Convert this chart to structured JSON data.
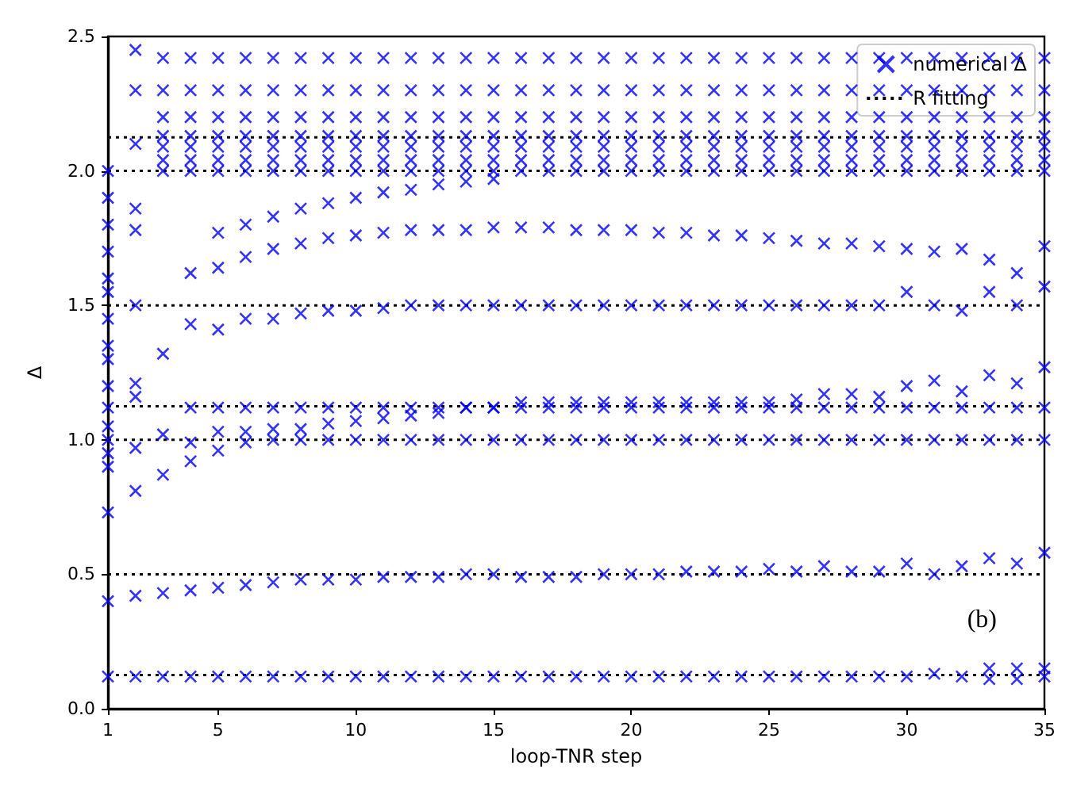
{
  "chart_data": {
    "type": "scatter",
    "xlabel": "loop-TNR step",
    "ylabel": "Δ",
    "xlim": [
      1,
      35
    ],
    "ylim": [
      0,
      2.5
    ],
    "xticks": [
      1,
      5,
      10,
      15,
      20,
      25,
      30,
      35
    ],
    "yticks": [
      {
        "value": 0,
        "label": "0.0"
      },
      {
        "value": 0.5,
        "label": "0.5"
      },
      {
        "value": 1,
        "label": "1.0"
      },
      {
        "value": 1.5,
        "label": "1.5"
      },
      {
        "value": 2,
        "label": "2.0"
      },
      {
        "value": 2.5,
        "label": "2.5"
      }
    ],
    "grid": false,
    "legend": "top right",
    "annotations": [
      "(b)"
    ],
    "series": [
      {
        "name": "numerical Δ",
        "type": "scatter",
        "marker": "cross",
        "color": "#0000ff",
        "x": [
          1,
          2,
          3,
          4,
          5,
          6,
          7,
          8,
          9,
          10,
          11,
          12,
          13,
          14,
          15,
          16,
          17,
          18,
          19,
          20,
          21,
          22,
          23,
          24,
          25,
          26,
          27,
          28,
          29,
          30,
          31,
          32,
          33,
          34,
          35,
          33,
          34,
          35,
          1,
          2,
          3,
          4,
          5,
          6,
          7,
          8,
          9,
          10,
          11,
          12,
          13,
          14,
          15,
          16,
          17,
          18,
          19,
          20,
          21,
          22,
          23,
          24,
          25,
          26,
          27,
          28,
          29,
          30,
          31,
          32,
          33,
          34,
          35,
          1,
          2,
          3,
          4,
          5,
          6,
          7,
          8,
          9,
          10,
          11,
          12,
          13,
          14,
          15,
          16,
          17,
          18,
          19,
          20,
          21,
          22,
          23,
          24,
          25,
          26,
          27,
          28,
          29,
          30,
          31,
          32,
          33,
          34,
          35,
          2,
          3,
          4,
          5,
          6,
          7,
          8,
          9,
          10,
          11,
          12,
          13,
          14,
          15,
          16,
          17,
          18,
          19,
          20,
          21,
          22,
          23,
          24,
          25,
          26,
          27,
          28,
          29,
          30,
          31,
          32,
          33,
          34,
          35,
          4,
          5,
          6,
          7,
          8,
          9,
          10,
          11,
          12,
          13,
          14,
          15,
          16,
          17,
          18,
          19,
          20,
          21,
          22,
          23,
          24,
          25,
          26,
          27,
          28,
          29,
          30,
          31,
          32,
          33,
          34,
          35,
          2,
          3,
          4,
          5,
          6,
          7,
          8,
          9,
          10,
          11,
          12,
          13,
          14,
          15,
          16,
          17,
          18,
          19,
          20,
          21,
          22,
          23,
          24,
          25,
          26,
          27,
          28,
          29,
          30,
          31,
          32,
          33,
          34,
          35,
          4,
          5,
          6,
          7,
          8,
          9,
          10,
          11,
          12,
          13,
          14,
          15,
          16,
          17,
          18,
          19,
          20,
          21,
          22,
          23,
          24,
          25,
          26,
          27,
          28,
          29,
          30,
          31,
          32,
          33,
          34,
          35,
          5,
          6,
          7,
          8,
          9,
          10,
          11,
          12,
          13,
          14,
          15,
          3,
          4,
          5,
          6,
          7,
          8,
          9,
          10,
          11,
          12,
          13,
          14,
          15,
          16,
          17,
          18,
          19,
          20,
          21,
          22,
          23,
          24,
          25,
          26,
          27,
          28,
          29,
          30,
          31,
          32,
          33,
          34,
          35,
          3,
          4,
          5,
          6,
          7,
          8,
          9,
          10,
          11,
          12,
          13,
          14,
          15,
          16,
          17,
          18,
          19,
          20,
          21,
          22,
          23,
          24,
          25,
          26,
          27,
          28,
          29,
          30,
          31,
          32,
          33,
          34,
          35,
          3,
          4,
          5,
          6,
          7,
          8,
          9,
          10,
          11,
          12,
          13,
          14,
          15,
          16,
          17,
          18,
          19,
          20,
          21,
          22,
          23,
          24,
          25,
          26,
          27,
          28,
          29,
          30,
          31,
          32,
          33,
          34,
          35,
          3,
          4,
          5,
          6,
          7,
          8,
          9,
          10,
          11,
          12,
          13,
          14,
          15,
          16,
          17,
          18,
          19,
          20,
          21,
          22,
          23,
          24,
          25,
          26,
          27,
          28,
          29,
          30,
          31,
          32,
          33,
          34,
          35,
          3,
          4,
          5,
          6,
          7,
          8,
          9,
          10,
          11,
          12,
          13,
          14,
          15,
          16,
          17,
          18,
          19,
          20,
          21,
          22,
          23,
          24,
          25,
          26,
          27,
          28,
          29,
          30,
          31,
          32,
          33,
          34,
          35,
          3,
          4,
          5,
          6,
          7,
          8,
          9,
          10,
          11,
          12,
          13,
          14,
          15,
          16,
          17,
          18,
          19,
          20,
          21,
          22,
          23,
          24,
          25,
          26,
          27,
          28,
          29,
          30,
          31,
          32,
          33,
          34,
          35,
          3,
          4,
          5,
          6,
          7,
          8,
          9,
          10,
          11,
          12,
          13,
          14,
          15,
          16,
          17,
          18,
          19,
          20,
          21,
          22,
          23,
          24,
          25,
          26,
          27,
          28,
          29,
          30,
          31,
          32,
          33,
          34,
          35,
          1,
          1,
          1,
          1,
          1,
          1,
          1,
          1,
          1,
          1,
          1,
          1,
          1,
          1,
          1,
          2,
          2,
          2,
          2,
          2,
          2,
          2
        ],
        "values": [
          0.12,
          0.12,
          0.12,
          0.12,
          0.12,
          0.12,
          0.12,
          0.12,
          0.12,
          0.12,
          0.12,
          0.12,
          0.12,
          0.12,
          0.12,
          0.12,
          0.12,
          0.12,
          0.12,
          0.12,
          0.12,
          0.12,
          0.12,
          0.12,
          0.12,
          0.12,
          0.12,
          0.12,
          0.12,
          0.12,
          0.13,
          0.12,
          0.15,
          0.15,
          0.15,
          0.11,
          0.11,
          0.12,
          0.4,
          0.42,
          0.43,
          0.44,
          0.45,
          0.46,
          0.47,
          0.48,
          0.48,
          0.48,
          0.49,
          0.49,
          0.49,
          0.5,
          0.5,
          0.49,
          0.49,
          0.49,
          0.5,
          0.5,
          0.5,
          0.51,
          0.51,
          0.51,
          0.52,
          0.51,
          0.53,
          0.51,
          0.51,
          0.54,
          0.5,
          0.53,
          0.56,
          0.54,
          0.58,
          0.73,
          0.81,
          0.87,
          0.92,
          0.96,
          0.99,
          1,
          1,
          1,
          1,
          1,
          1,
          1,
          1,
          1,
          1,
          1,
          1,
          1,
          1,
          1,
          1,
          1,
          1,
          1,
          1,
          1,
          1,
          1,
          1,
          1,
          1,
          1,
          1,
          1,
          0.97,
          1.02,
          0.99,
          1.03,
          1.03,
          1.04,
          1.04,
          1.06,
          1.07,
          1.08,
          1.09,
          1.1,
          1.12,
          1.12,
          1.14,
          1.14,
          1.14,
          1.14,
          1.14,
          1.14,
          1.14,
          1.14,
          1.14,
          1.14,
          1.15,
          1.17,
          1.17,
          1.16,
          1.2,
          1.22,
          1.18,
          1.24,
          1.21,
          1.27,
          1.12,
          1.12,
          1.12,
          1.12,
          1.12,
          1.12,
          1.12,
          1.12,
          1.12,
          1.12,
          1.12,
          1.12,
          1.12,
          1.12,
          1.12,
          1.12,
          1.12,
          1.12,
          1.12,
          1.12,
          1.12,
          1.12,
          1.12,
          1.12,
          1.12,
          1.12,
          1.12,
          1.12,
          1.12,
          1.12,
          1.12,
          1.12,
          1.5,
          1.32,
          1.43,
          1.41,
          1.45,
          1.45,
          1.47,
          1.48,
          1.48,
          1.49,
          1.5,
          1.5,
          1.5,
          1.5,
          1.5,
          1.5,
          1.5,
          1.5,
          1.5,
          1.5,
          1.5,
          1.5,
          1.5,
          1.5,
          1.5,
          1.5,
          1.5,
          1.5,
          1.55,
          1.5,
          1.48,
          1.55,
          1.5,
          1.57,
          1.62,
          1.64,
          1.68,
          1.71,
          1.73,
          1.75,
          1.76,
          1.77,
          1.78,
          1.78,
          1.78,
          1.79,
          1.79,
          1.79,
          1.78,
          1.78,
          1.78,
          1.77,
          1.77,
          1.76,
          1.76,
          1.75,
          1.74,
          1.73,
          1.73,
          1.72,
          1.71,
          1.7,
          1.71,
          1.67,
          1.62,
          1.72,
          1.77,
          1.8,
          1.83,
          1.86,
          1.88,
          1.9,
          1.92,
          1.93,
          1.95,
          1.96,
          1.97,
          2,
          2,
          2,
          2,
          2,
          2,
          2,
          2,
          2,
          2,
          2,
          2,
          2,
          2,
          2,
          2,
          2,
          2,
          2,
          2,
          2,
          2,
          2,
          2,
          2,
          2,
          2,
          2,
          2,
          2,
          2,
          2,
          2,
          2.04,
          2.04,
          2.04,
          2.04,
          2.04,
          2.04,
          2.04,
          2.04,
          2.04,
          2.04,
          2.04,
          2.04,
          2.04,
          2.04,
          2.04,
          2.04,
          2.04,
          2.04,
          2.04,
          2.04,
          2.04,
          2.04,
          2.04,
          2.04,
          2.04,
          2.04,
          2.04,
          2.04,
          2.04,
          2.04,
          2.04,
          2.04,
          2.04,
          2.09,
          2.09,
          2.09,
          2.09,
          2.09,
          2.09,
          2.09,
          2.09,
          2.09,
          2.09,
          2.09,
          2.09,
          2.09,
          2.09,
          2.09,
          2.09,
          2.09,
          2.09,
          2.09,
          2.09,
          2.09,
          2.09,
          2.09,
          2.09,
          2.09,
          2.09,
          2.09,
          2.09,
          2.09,
          2.09,
          2.09,
          2.09,
          2.09,
          2.13,
          2.13,
          2.13,
          2.13,
          2.13,
          2.13,
          2.13,
          2.13,
          2.13,
          2.13,
          2.13,
          2.13,
          2.13,
          2.13,
          2.13,
          2.13,
          2.13,
          2.13,
          2.13,
          2.13,
          2.13,
          2.13,
          2.13,
          2.13,
          2.13,
          2.13,
          2.13,
          2.13,
          2.13,
          2.13,
          2.13,
          2.13,
          2.13,
          2.2,
          2.2,
          2.2,
          2.2,
          2.2,
          2.2,
          2.2,
          2.2,
          2.2,
          2.2,
          2.2,
          2.2,
          2.2,
          2.2,
          2.2,
          2.2,
          2.2,
          2.2,
          2.2,
          2.2,
          2.2,
          2.2,
          2.2,
          2.2,
          2.2,
          2.2,
          2.2,
          2.2,
          2.2,
          2.2,
          2.2,
          2.2,
          2.2,
          2.3,
          2.3,
          2.3,
          2.3,
          2.3,
          2.3,
          2.3,
          2.3,
          2.3,
          2.3,
          2.3,
          2.3,
          2.3,
          2.3,
          2.3,
          2.3,
          2.3,
          2.3,
          2.3,
          2.3,
          2.3,
          2.3,
          2.3,
          2.3,
          2.3,
          2.3,
          2.3,
          2.3,
          2.3,
          2.3,
          2.3,
          2.3,
          2.3,
          2.42,
          2.42,
          2.42,
          2.42,
          2.42,
          2.42,
          2.42,
          2.42,
          2.42,
          2.42,
          2.42,
          2.42,
          2.42,
          2.42,
          2.42,
          2.42,
          2.42,
          2.42,
          2.42,
          2.42,
          2.42,
          2.42,
          2.42,
          2.42,
          2.42,
          2.42,
          2.42,
          2.42,
          2.42,
          2.42,
          2.42,
          2.42,
          2.42,
          0.9,
          0.95,
          1,
          1.05,
          1.12,
          1.2,
          1.3,
          1.35,
          1.45,
          1.55,
          1.6,
          1.7,
          1.8,
          1.9,
          2,
          1.16,
          1.21,
          1.86,
          1.78,
          2.1,
          2.3,
          2.45
        ]
      },
      {
        "name": "R fitting",
        "type": "line",
        "line_style": "dotted",
        "marker": "none",
        "color": "#000000",
        "x": [
          1,
          35
        ],
        "values": [
          0.125,
          0.125
        ]
      },
      {
        "type": "line",
        "line_style": "dotted",
        "marker": "none",
        "color": "#000000",
        "x": [
          1,
          35
        ],
        "values": [
          0.5,
          0.5
        ]
      },
      {
        "type": "line",
        "line_style": "dotted",
        "marker": "none",
        "color": "#000000",
        "x": [
          1,
          35
        ],
        "values": [
          1,
          1
        ]
      },
      {
        "type": "line",
        "line_style": "dotted",
        "marker": "none",
        "color": "#000000",
        "x": [
          1,
          35
        ],
        "values": [
          1.125,
          1.125
        ]
      },
      {
        "type": "line",
        "line_style": "dotted",
        "marker": "none",
        "color": "#000000",
        "x": [
          1,
          35
        ],
        "values": [
          1.5,
          1.5
        ]
      },
      {
        "type": "line",
        "line_style": "dotted",
        "marker": "none",
        "color": "#000000",
        "x": [
          1,
          35
        ],
        "values": [
          2,
          2
        ]
      },
      {
        "type": "line",
        "line_style": "dotted",
        "marker": "none",
        "color": "#000000",
        "x": [
          1,
          35
        ],
        "values": [
          2.125,
          2.125
        ]
      }
    ]
  }
}
